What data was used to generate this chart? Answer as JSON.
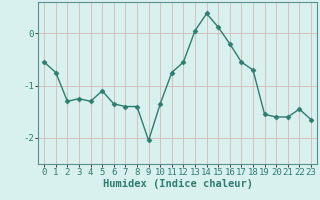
{
  "x": [
    0,
    1,
    2,
    3,
    4,
    5,
    6,
    7,
    8,
    9,
    10,
    11,
    12,
    13,
    14,
    15,
    16,
    17,
    18,
    19,
    20,
    21,
    22,
    23
  ],
  "y": [
    -0.55,
    -0.75,
    -1.3,
    -1.25,
    -1.3,
    -1.1,
    -1.35,
    -1.4,
    -1.4,
    -2.05,
    -1.35,
    -0.75,
    -0.55,
    0.05,
    0.38,
    0.12,
    -0.2,
    -0.55,
    -0.7,
    -1.55,
    -1.6,
    -1.6,
    -1.45,
    -1.65
  ],
  "line_color": "#2e7d6e",
  "marker": "D",
  "marker_size": 2.5,
  "bg_color": "#d8f0ee",
  "grid_color": "#c8dedd",
  "xlabel": "Humidex (Indice chaleur)",
  "ylim": [
    -2.5,
    0.6
  ],
  "xlim": [
    -0.5,
    23.5
  ],
  "yticks": [
    -2,
    -1,
    0
  ],
  "xticks": [
    0,
    1,
    2,
    3,
    4,
    5,
    6,
    7,
    8,
    9,
    10,
    11,
    12,
    13,
    14,
    15,
    16,
    17,
    18,
    19,
    20,
    21,
    22,
    23
  ],
  "tick_fontsize": 6.5,
  "xlabel_fontsize": 7.5,
  "line_width": 1.0,
  "spine_color": "#5a9090"
}
